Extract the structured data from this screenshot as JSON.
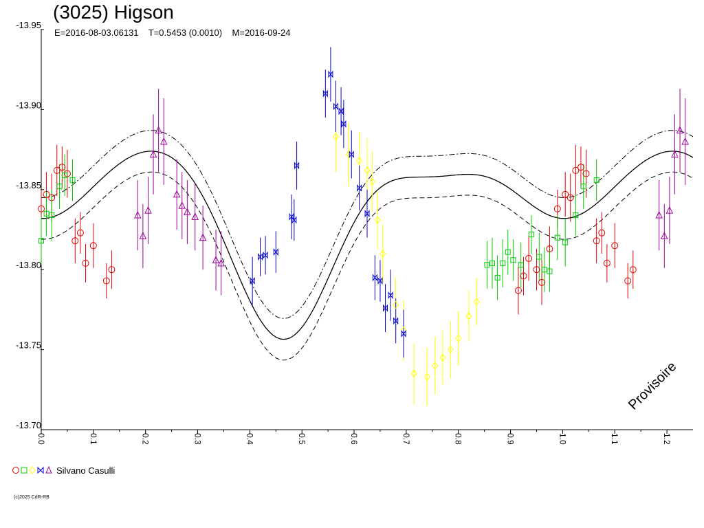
{
  "header": {
    "title": "(3025) Higson",
    "epoch": "E=2016-08-03.06131",
    "period": "T=0.5453 (0.0010)",
    "mid_date": "M=2016-09-24"
  },
  "watermark": "Provisoire",
  "copyright": "(c)2025 CdR-RB",
  "legend": {
    "observer": "Silvano Casulli",
    "marker_shapes": [
      "circle-icon",
      "square-icon",
      "diamond-icon",
      "bowtie-icon",
      "triangle-icon"
    ]
  },
  "colors": {
    "s1": "#dd0000",
    "s2": "#00cc00",
    "s3": "#ffff00",
    "s4": "#0000cc",
    "s5": "#990099",
    "fit": "#000000"
  },
  "chart_data": {
    "type": "scatter",
    "xlim": [
      0.0,
      1.25
    ],
    "ylim": [
      -13.95,
      -13.7
    ],
    "y_inverted": true,
    "x_ticks": [
      0.0,
      0.1,
      0.2,
      0.3,
      0.4,
      0.5,
      0.6,
      0.7,
      0.8,
      0.9,
      1.0,
      1.1,
      1.2
    ],
    "x_tick_labels": [
      "0.0",
      "0.1",
      "0.2",
      "0.3",
      "0.4",
      "0.5",
      "0.6",
      "0.7",
      "0.8",
      "0.9",
      "1.0",
      "1.1",
      "1.2"
    ],
    "y_ticks": [
      -13.95,
      -13.9,
      -13.85,
      -13.8,
      -13.75,
      -13.7
    ],
    "y_tick_labels": [
      "-13.95",
      "-13.90",
      "-13.85",
      "-13.80",
      "-13.75",
      "-13.70"
    ],
    "series": [
      {
        "marker": "circle",
        "color": "#dd0000",
        "points": [
          [
            0.0,
            -13.838
          ],
          [
            0.01,
            -13.847
          ],
          [
            0.02,
            -13.845
          ],
          [
            0.03,
            -13.862
          ],
          [
            0.04,
            -13.864
          ],
          [
            0.05,
            -13.86
          ],
          [
            0.065,
            -13.818
          ],
          [
            0.075,
            -13.823
          ],
          [
            0.085,
            -13.804
          ],
          [
            0.1,
            -13.815
          ],
          [
            0.125,
            -13.793
          ],
          [
            0.135,
            -13.8
          ],
          [
            0.915,
            -13.787
          ],
          [
            0.925,
            -13.796
          ],
          [
            0.935,
            -13.807
          ],
          [
            0.95,
            -13.8
          ],
          [
            0.96,
            -13.792
          ],
          [
            0.975,
            -13.813
          ],
          [
            0.99,
            -13.838
          ],
          [
            1.005,
            -13.847
          ],
          [
            1.015,
            -13.845
          ],
          [
            1.025,
            -13.862
          ],
          [
            1.035,
            -13.864
          ],
          [
            1.045,
            -13.86
          ],
          [
            1.065,
            -13.818
          ],
          [
            1.075,
            -13.823
          ],
          [
            1.085,
            -13.804
          ],
          [
            1.1,
            -13.815
          ],
          [
            1.125,
            -13.793
          ],
          [
            1.135,
            -13.8
          ]
        ],
        "errors": [
          0.012,
          0.014,
          0.015,
          0.016,
          0.013,
          0.015,
          0.014,
          0.013,
          0.012,
          0.014,
          0.011,
          0.012,
          0.015,
          0.012,
          0.014,
          0.013,
          0.014,
          0.014,
          0.012,
          0.014,
          0.015,
          0.016,
          0.013,
          0.015,
          0.014,
          0.013,
          0.012,
          0.014,
          0.011,
          0.012
        ]
      },
      {
        "marker": "square",
        "color": "#00cc00",
        "points": [
          [
            0.0,
            -13.818
          ],
          [
            0.01,
            -13.835
          ],
          [
            0.02,
            -13.834
          ],
          [
            0.035,
            -13.852
          ],
          [
            0.045,
            -13.859
          ],
          [
            0.06,
            -13.856
          ],
          [
            0.855,
            -13.803
          ],
          [
            0.865,
            -13.804
          ],
          [
            0.875,
            -13.795
          ],
          [
            0.885,
            -13.804
          ],
          [
            0.895,
            -13.811
          ],
          [
            0.905,
            -13.806
          ],
          [
            0.92,
            -13.803
          ],
          [
            0.94,
            -13.822
          ],
          [
            0.955,
            -13.808
          ],
          [
            0.965,
            -13.8
          ],
          [
            0.975,
            -13.799
          ],
          [
            0.99,
            -13.82
          ],
          [
            1.005,
            -13.817
          ],
          [
            1.025,
            -13.834
          ],
          [
            1.04,
            -13.852
          ],
          [
            1.065,
            -13.856
          ]
        ],
        "errors": [
          0.015,
          0.014,
          0.016,
          0.014,
          0.013,
          0.013,
          0.015,
          0.016,
          0.014,
          0.015,
          0.014,
          0.013,
          0.014,
          0.012,
          0.015,
          0.014,
          0.013,
          0.014,
          0.015,
          0.013,
          0.014,
          0.013
        ]
      },
      {
        "marker": "diamond",
        "color": "#ffff00",
        "points": [
          [
            0.565,
            -13.883
          ],
          [
            0.59,
            -13.872
          ],
          [
            0.61,
            -13.868
          ],
          [
            0.625,
            -13.862
          ],
          [
            0.635,
            -13.855
          ],
          [
            0.645,
            -13.831
          ],
          [
            0.655,
            -13.81
          ],
          [
            0.68,
            -13.778
          ],
          [
            0.695,
            -13.762
          ],
          [
            0.715,
            -13.735
          ],
          [
            0.74,
            -13.733
          ],
          [
            0.755,
            -13.74
          ],
          [
            0.77,
            -13.745
          ],
          [
            0.785,
            -13.75
          ],
          [
            0.8,
            -13.757
          ],
          [
            0.82,
            -13.771
          ],
          [
            0.835,
            -13.78
          ]
        ],
        "errors": [
          0.022,
          0.02,
          0.018,
          0.02,
          0.019,
          0.018,
          0.018,
          0.017,
          0.019,
          0.019,
          0.018,
          0.018,
          0.017,
          0.018,
          0.017,
          0.016,
          0.015
        ]
      },
      {
        "marker": "bowtie",
        "color": "#0000cc",
        "points": [
          [
            0.405,
            -13.793
          ],
          [
            0.42,
            -13.808
          ],
          [
            0.43,
            -13.809
          ],
          [
            0.45,
            -13.811
          ],
          [
            0.48,
            -13.833
          ],
          [
            0.485,
            -13.831
          ],
          [
            0.49,
            -13.865
          ],
          [
            0.545,
            -13.91
          ],
          [
            0.555,
            -13.922
          ],
          [
            0.565,
            -13.902
          ],
          [
            0.575,
            -13.899
          ],
          [
            0.58,
            -13.891
          ],
          [
            0.595,
            -13.872
          ],
          [
            0.61,
            -13.851
          ],
          [
            0.625,
            -13.835
          ],
          [
            0.64,
            -13.795
          ],
          [
            0.65,
            -13.793
          ],
          [
            0.66,
            -13.776
          ],
          [
            0.67,
            -13.784
          ],
          [
            0.68,
            -13.768
          ],
          [
            0.695,
            -13.76
          ]
        ],
        "errors": [
          0.015,
          0.012,
          0.012,
          0.013,
          0.014,
          0.013,
          0.015,
          0.015,
          0.017,
          0.016,
          0.015,
          0.015,
          0.015,
          0.014,
          0.015,
          0.014,
          0.013,
          0.015,
          0.016,
          0.014,
          0.015
        ]
      },
      {
        "marker": "triangle",
        "color": "#990099",
        "points": [
          [
            0.185,
            -13.834
          ],
          [
            0.195,
            -13.821
          ],
          [
            0.205,
            -13.837
          ],
          [
            0.215,
            -13.872
          ],
          [
            0.225,
            -13.887
          ],
          [
            0.235,
            -13.88
          ],
          [
            0.26,
            -13.847
          ],
          [
            0.27,
            -13.84
          ],
          [
            0.28,
            -13.836
          ],
          [
            0.295,
            -13.833
          ],
          [
            0.31,
            -13.82
          ],
          [
            0.335,
            -13.806
          ],
          [
            0.345,
            -13.804
          ],
          [
            1.185,
            -13.834
          ],
          [
            1.195,
            -13.821
          ],
          [
            1.205,
            -13.837
          ],
          [
            1.215,
            -13.872
          ],
          [
            1.225,
            -13.887
          ],
          [
            1.235,
            -13.88
          ]
        ],
        "errors": [
          0.022,
          0.02,
          0.021,
          0.025,
          0.026,
          0.027,
          0.022,
          0.021,
          0.02,
          0.021,
          0.02,
          0.019,
          0.02,
          0.022,
          0.02,
          0.021,
          0.025,
          0.026,
          0.027
        ]
      }
    ],
    "fit_curve": {
      "kind": "fourier",
      "mean": -13.835,
      "terms": [
        {
          "harmonic": 1,
          "cos": -0.03,
          "sin": 0.004
        },
        {
          "harmonic": 2,
          "cos": 0.033,
          "sin": -0.012
        },
        {
          "harmonic": 3,
          "cos": -0.004,
          "sin": 0.01
        },
        {
          "harmonic": 4,
          "cos": 0.004,
          "sin": -0.002
        }
      ],
      "envelope": 0.013
    }
  }
}
